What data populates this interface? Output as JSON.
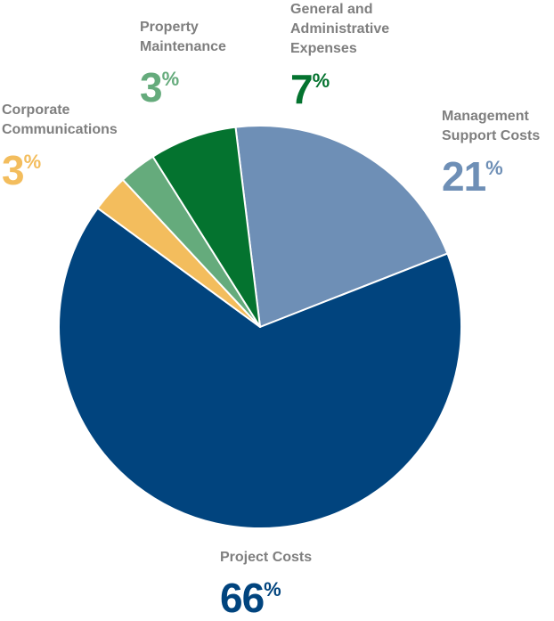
{
  "chart_data": {
    "type": "pie",
    "title": "",
    "slices": [
      {
        "label": "Management\nSupport Costs",
        "value": 21,
        "display": "21",
        "color": "#6e8fb6"
      },
      {
        "label": "Project Costs",
        "value": 66,
        "display": "66",
        "color": "#01447e"
      },
      {
        "label": "Corporate\nCommunications",
        "value": 3,
        "display": "3",
        "color": "#f3bd5d"
      },
      {
        "label": "Property\nMaintenance",
        "value": 3,
        "display": "3",
        "color": "#65ab7c"
      },
      {
        "label": "General and\nAdministrative\nExpenses",
        "value": 7,
        "display": "7",
        "color": "#04732f"
      }
    ],
    "percent_sign": "%",
    "label_color": "#7f7f7f"
  }
}
